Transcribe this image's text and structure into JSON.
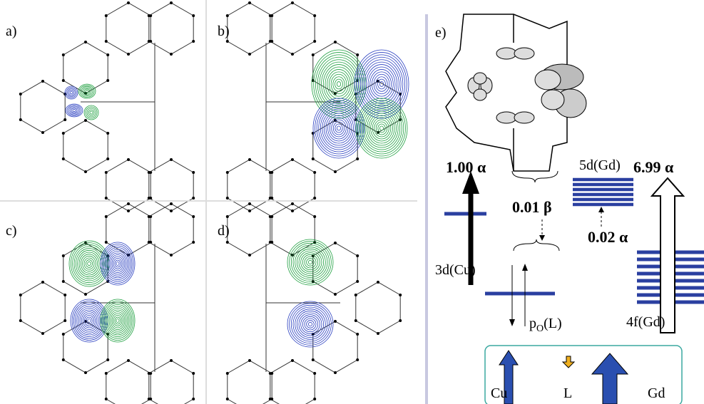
{
  "panels": {
    "a": "a)",
    "b": "b)",
    "c": "c)",
    "d": "d)",
    "e": "e)"
  },
  "diagram": {
    "level_5d": "5d(Gd)",
    "level_3d": "3d(Cu)",
    "level_4f": "4f(Gd)",
    "level_pO": {
      "main": "p",
      "sub": "O",
      "rest": "(L)"
    },
    "spin_cu": "1.00 α",
    "spin_gd": "6.99 α",
    "transfer_L": "0.01 β",
    "transfer_gd": "0.02 α"
  },
  "legend": {
    "cu": "Cu",
    "l": "L",
    "gd": "Gd"
  }
}
